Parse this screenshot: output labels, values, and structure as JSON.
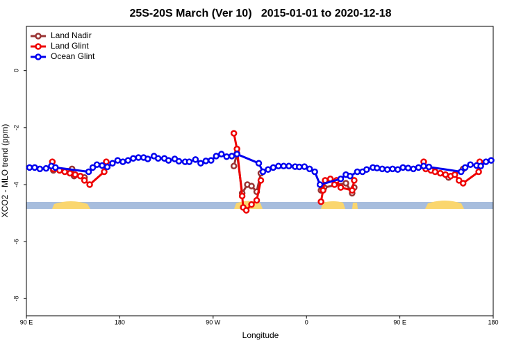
{
  "chart_data": {
    "type": "line",
    "title": "25S-20S March (Ver 10)   2015-01-01 to 2020-12-18",
    "x_label": "Longitude",
    "y_label": "XCO2 - MLO trend (ppm)",
    "xlim": [
      90,
      540
    ],
    "ylim": [
      -8.6,
      1.55
    ],
    "xticks": [
      {
        "value": 90,
        "label": "90 E"
      },
      180,
      {
        "value": 270,
        "label": "90 W"
      },
      {
        "value": 360,
        "label": "0"
      },
      {
        "value": 450,
        "label": "90 E"
      },
      {
        "value": 540,
        "label": "180"
      }
    ],
    "yticks": [
      0,
      -2,
      -4,
      -6,
      -8
    ],
    "legend": "top-left",
    "series": [
      {
        "name": "Land Nadir",
        "color": "#993333",
        "x": [
          116,
          134,
          136,
          146,
          null,
          290,
          293,
          298,
          303,
          307,
          312,
          316,
          null,
          374,
          377,
          398,
          404,
          406,
          null,
          475,
          497,
          511
        ],
        "values": [
          -3.5,
          -3.45,
          -3.7,
          -3.75,
          null,
          -3.35,
          -2.9,
          -4.3,
          -4.0,
          -4.05,
          -4.25,
          -3.6,
          null,
          -4.2,
          -4.1,
          -3.95,
          -4.3,
          -4.1,
          null,
          -3.45,
          -3.75,
          -3.45
        ]
      },
      {
        "name": "Land Glint",
        "color": "#ee0000",
        "x": [
          115,
          116,
          122,
          127,
          132,
          137,
          142,
          146,
          151,
          165,
          167,
          null,
          290,
          293,
          298,
          299,
          302,
          307,
          312,
          316,
          null,
          374,
          376,
          378,
          383,
          387,
          389,
          393,
          404,
          406,
          null,
          473,
          475,
          480,
          484,
          489,
          494,
          499,
          503,
          507,
          511,
          526,
          527
        ],
        "values": [
          -3.2,
          -3.45,
          -3.5,
          -3.55,
          -3.6,
          -3.65,
          -3.7,
          -3.85,
          -4.0,
          -3.55,
          -3.2,
          null,
          -2.2,
          -2.75,
          -4.4,
          -4.8,
          -4.9,
          -4.7,
          -4.55,
          -3.85,
          null,
          -4.6,
          -4.2,
          -3.85,
          -3.8,
          -4.0,
          -3.85,
          -4.1,
          -4.2,
          -3.85,
          null,
          -3.2,
          -3.45,
          -3.5,
          -3.55,
          -3.6,
          -3.65,
          -3.7,
          -3.65,
          -3.85,
          -3.95,
          -3.55,
          -3.2
        ]
      },
      {
        "name": "Ocean Glint",
        "color": "#0000ee",
        "x": [
          93,
          98,
          103,
          109,
          114,
          118,
          150,
          154,
          158,
          163,
          168,
          173,
          178,
          183,
          188,
          193,
          198,
          203,
          207,
          213,
          217,
          223,
          227,
          233,
          237,
          243,
          247,
          253,
          258,
          263,
          268,
          273,
          278,
          283,
          288,
          293,
          314,
          318,
          323,
          328,
          333,
          338,
          343,
          349,
          353,
          358,
          363,
          368,
          373,
          393,
          398,
          402,
          409,
          414,
          418,
          424,
          428,
          433,
          438,
          443,
          448,
          453,
          458,
          463,
          468,
          473,
          478,
          509,
          513,
          518,
          524,
          528,
          533,
          538
        ],
        "values": [
          -3.4,
          -3.4,
          -3.45,
          -3.43,
          -3.35,
          -3.4,
          -3.55,
          -3.4,
          -3.3,
          -3.33,
          -3.38,
          -3.25,
          -3.15,
          -3.2,
          -3.15,
          -3.08,
          -3.05,
          -3.05,
          -3.1,
          -3.0,
          -3.08,
          -3.08,
          -3.15,
          -3.1,
          -3.18,
          -3.2,
          -3.2,
          -3.12,
          -3.25,
          -3.17,
          -3.15,
          -3.0,
          -2.93,
          -3.02,
          -3.0,
          -2.93,
          -3.25,
          -3.55,
          -3.47,
          -3.4,
          -3.35,
          -3.35,
          -3.35,
          -3.37,
          -3.38,
          -3.37,
          -3.45,
          -3.55,
          -4.0,
          -3.8,
          -3.65,
          -3.7,
          -3.55,
          -3.55,
          -3.47,
          -3.4,
          -3.42,
          -3.45,
          -3.47,
          -3.45,
          -3.47,
          -3.4,
          -3.42,
          -3.45,
          -3.4,
          -3.35,
          -3.38,
          -3.55,
          -3.4,
          -3.3,
          -3.33,
          -3.35,
          -3.2,
          -3.15
        ]
      }
    ]
  }
}
